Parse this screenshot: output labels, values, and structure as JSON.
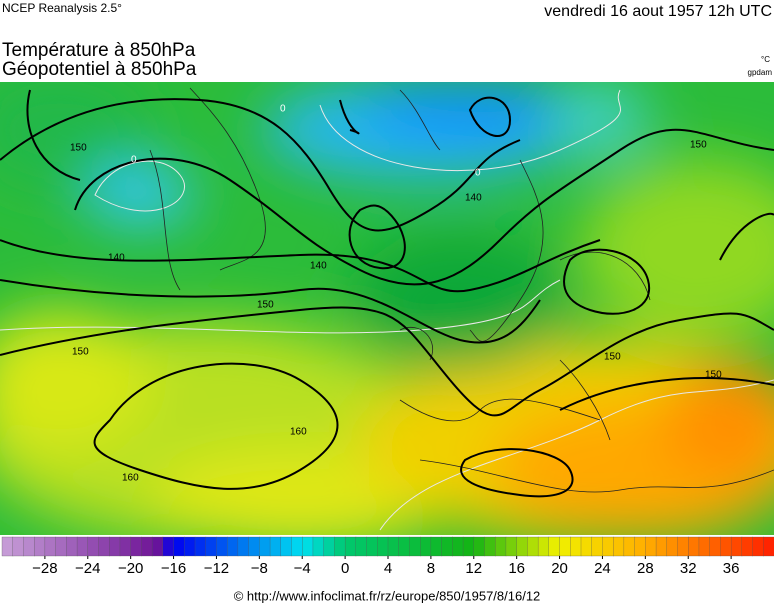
{
  "header": {
    "source": "NCEP Reanalysis 2.5°",
    "date": "vendredi 16 aout 1957 12h UTC"
  },
  "titles": [
    "Température à 850hPa",
    "Géopotentiel à 850hPa"
  ],
  "units": [
    "°C",
    "gpdam"
  ],
  "map": {
    "contour_labels": [
      "150",
      "140",
      "140",
      "150",
      "150",
      "160",
      "160",
      "140",
      "150",
      "150",
      "150",
      "0",
      "0",
      "0"
    ]
  },
  "colorbar": {
    "range": [
      -32,
      40
    ],
    "ticks": [
      {
        "value": -28,
        "label": "−28"
      },
      {
        "value": -24,
        "label": "−24"
      },
      {
        "value": -20,
        "label": "−20"
      },
      {
        "value": -16,
        "label": "−16"
      },
      {
        "value": -12,
        "label": "−12"
      },
      {
        "value": -8,
        "label": "−8"
      },
      {
        "value": -4,
        "label": "−4"
      },
      0,
      4,
      8,
      12,
      16,
      20,
      24,
      28,
      32,
      36
    ]
  },
  "footer": "© http://www.infoclimat.fr/rz/europe/850/1957/8/16/12"
}
